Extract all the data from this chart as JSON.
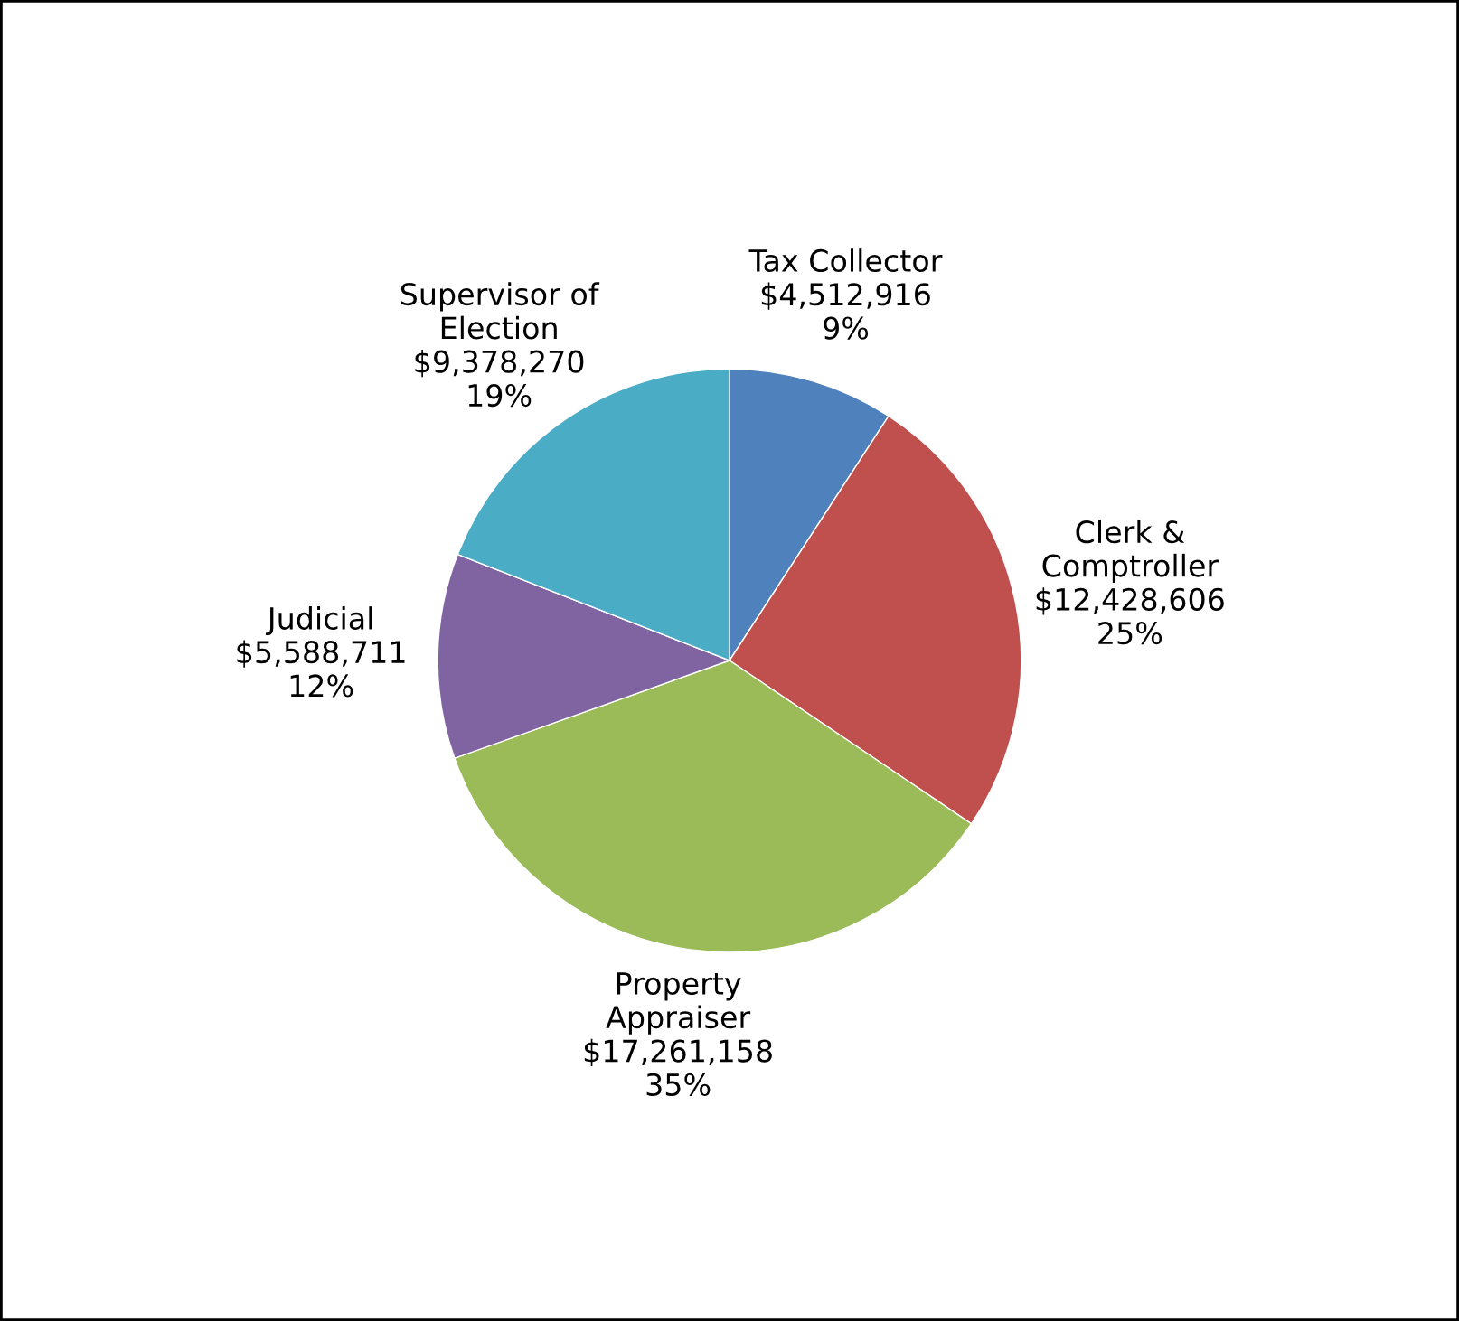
{
  "chart_data": {
    "type": "pie",
    "categories": [
      "Tax Collector",
      "Clerk &\nComptroller",
      "Property\nAppraiser",
      "Judicial",
      "Supervisor of\nElection"
    ],
    "values": [
      4512916,
      12428606,
      17261158,
      5588711,
      9378270
    ],
    "colors": [
      "#4f81bd",
      "#c0504d",
      "#9bbb59",
      "#8064a2",
      "#4bacc6"
    ],
    "value_labels": [
      "$4,512,916\n9%",
      "$12,428,606\n25%",
      "$17,261,158\n35%",
      "$5,588,711\n12%",
      "$9,378,270\n19%"
    ],
    "legend": false
  }
}
